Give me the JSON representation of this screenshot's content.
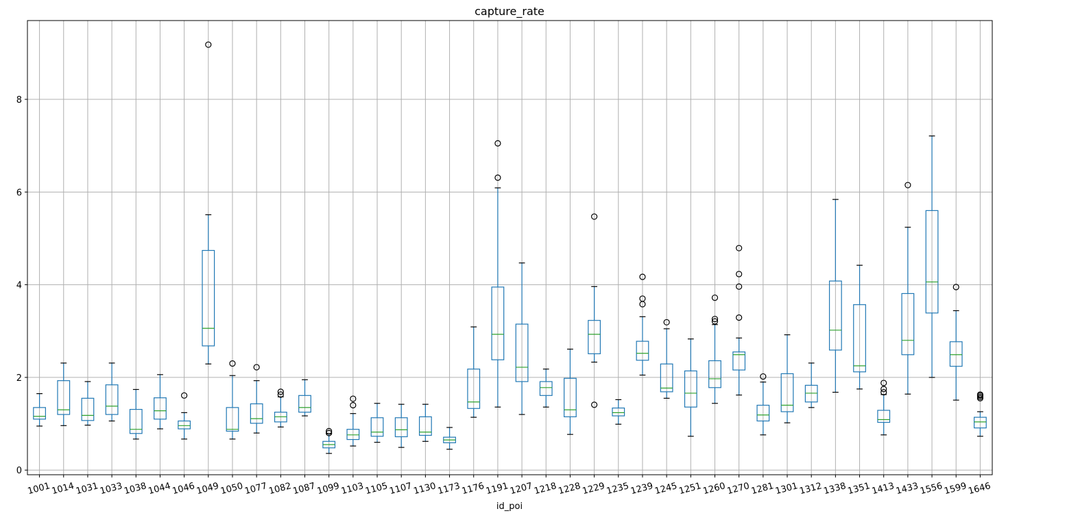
{
  "chart_data": {
    "type": "box",
    "title": "capture_rate",
    "xlabel": "id_poi",
    "ylabel": "",
    "ylim": [
      -0.1,
      9.7
    ],
    "yticks": [
      0,
      2,
      4,
      6,
      8
    ],
    "grid": true,
    "legend": "none",
    "colors": {
      "box": "#1f77b4",
      "median": "#2ca02c",
      "whisker": "#1f77b4",
      "cap": "#000000",
      "flier": "#000000",
      "grid": "#b0b0b0"
    },
    "categories": [
      "1001",
      "1014",
      "1031",
      "1033",
      "1038",
      "1044",
      "1046",
      "1049",
      "1050",
      "1077",
      "1082",
      "1087",
      "1099",
      "1103",
      "1105",
      "1107",
      "1130",
      "1173",
      "1176",
      "1191",
      "1207",
      "1218",
      "1228",
      "1229",
      "1235",
      "1239",
      "1245",
      "1251",
      "1260",
      "1270",
      "1281",
      "1301",
      "1312",
      "1338",
      "1351",
      "1413",
      "1433",
      "1556",
      "1599",
      "1646"
    ],
    "boxes": [
      {
        "id": "1001",
        "low": 0.95,
        "q1": 1.1,
        "median": 1.16,
        "q3": 1.35,
        "high": 1.65,
        "fliers": []
      },
      {
        "id": "1014",
        "low": 0.96,
        "q1": 1.2,
        "median": 1.3,
        "q3": 1.93,
        "high": 2.31,
        "fliers": []
      },
      {
        "id": "1031",
        "low": 0.97,
        "q1": 1.07,
        "median": 1.18,
        "q3": 1.55,
        "high": 1.91,
        "fliers": []
      },
      {
        "id": "1033",
        "low": 1.06,
        "q1": 1.2,
        "median": 1.38,
        "q3": 1.84,
        "high": 2.31,
        "fliers": []
      },
      {
        "id": "1038",
        "low": 0.67,
        "q1": 0.79,
        "median": 0.88,
        "q3": 1.31,
        "high": 1.74,
        "fliers": []
      },
      {
        "id": "1044",
        "low": 0.89,
        "q1": 1.1,
        "median": 1.28,
        "q3": 1.56,
        "high": 2.06,
        "fliers": []
      },
      {
        "id": "1046",
        "low": 0.67,
        "q1": 0.89,
        "median": 0.96,
        "q3": 1.06,
        "high": 1.24,
        "fliers": [
          1.61
        ]
      },
      {
        "id": "1049",
        "low": 2.29,
        "q1": 2.68,
        "median": 3.06,
        "q3": 4.74,
        "high": 5.51,
        "fliers": [
          9.18
        ]
      },
      {
        "id": "1050",
        "low": 0.67,
        "q1": 0.84,
        "median": 0.88,
        "q3": 1.35,
        "high": 2.04,
        "fliers": [
          2.3
        ]
      },
      {
        "id": "1077",
        "low": 0.8,
        "q1": 1.01,
        "median": 1.11,
        "q3": 1.43,
        "high": 1.93,
        "fliers": [
          2.22
        ]
      },
      {
        "id": "1082",
        "low": 0.93,
        "q1": 1.04,
        "median": 1.15,
        "q3": 1.25,
        "high": 1.58,
        "fliers": [
          1.63,
          1.69
        ]
      },
      {
        "id": "1087",
        "low": 1.17,
        "q1": 1.25,
        "median": 1.35,
        "q3": 1.61,
        "high": 1.95,
        "fliers": []
      },
      {
        "id": "1099",
        "low": 0.36,
        "q1": 0.48,
        "median": 0.55,
        "q3": 0.62,
        "high": 0.78,
        "fliers": [
          0.8,
          0.84
        ]
      },
      {
        "id": "1103",
        "low": 0.52,
        "q1": 0.66,
        "median": 0.76,
        "q3": 0.88,
        "high": 1.22,
        "fliers": [
          1.4,
          1.54
        ]
      },
      {
        "id": "1105",
        "low": 0.6,
        "q1": 0.73,
        "median": 0.82,
        "q3": 1.13,
        "high": 1.44,
        "fliers": []
      },
      {
        "id": "1107",
        "low": 0.49,
        "q1": 0.72,
        "median": 0.87,
        "q3": 1.13,
        "high": 1.42,
        "fliers": []
      },
      {
        "id": "1130",
        "low": 0.62,
        "q1": 0.75,
        "median": 0.82,
        "q3": 1.15,
        "high": 1.42,
        "fliers": []
      },
      {
        "id": "1173",
        "low": 0.45,
        "q1": 0.59,
        "median": 0.65,
        "q3": 0.71,
        "high": 0.92,
        "fliers": []
      },
      {
        "id": "1176",
        "low": 1.14,
        "q1": 1.33,
        "median": 1.47,
        "q3": 2.18,
        "high": 3.09,
        "fliers": []
      },
      {
        "id": "1191",
        "low": 1.36,
        "q1": 2.38,
        "median": 2.93,
        "q3": 3.95,
        "high": 6.09,
        "fliers": [
          6.31,
          7.05
        ]
      },
      {
        "id": "1207",
        "low": 1.2,
        "q1": 1.91,
        "median": 2.22,
        "q3": 3.15,
        "high": 4.47,
        "fliers": []
      },
      {
        "id": "1218",
        "low": 1.36,
        "q1": 1.61,
        "median": 1.78,
        "q3": 1.91,
        "high": 2.18,
        "fliers": []
      },
      {
        "id": "1228",
        "low": 0.77,
        "q1": 1.15,
        "median": 1.3,
        "q3": 1.98,
        "high": 2.61,
        "fliers": []
      },
      {
        "id": "1229",
        "low": 2.33,
        "q1": 2.51,
        "median": 2.93,
        "q3": 3.23,
        "high": 3.96,
        "fliers": [
          1.41,
          5.47
        ]
      },
      {
        "id": "1235",
        "low": 0.99,
        "q1": 1.17,
        "median": 1.24,
        "q3": 1.34,
        "high": 1.52,
        "fliers": []
      },
      {
        "id": "1239",
        "low": 2.05,
        "q1": 2.37,
        "median": 2.52,
        "q3": 2.78,
        "high": 3.31,
        "fliers": [
          3.58,
          3.7,
          4.17
        ]
      },
      {
        "id": "1245",
        "low": 1.55,
        "q1": 1.69,
        "median": 1.77,
        "q3": 2.29,
        "high": 3.05,
        "fliers": [
          3.19
        ]
      },
      {
        "id": "1251",
        "low": 0.73,
        "q1": 1.36,
        "median": 1.66,
        "q3": 2.14,
        "high": 2.83,
        "fliers": []
      },
      {
        "id": "1260",
        "low": 1.44,
        "q1": 1.78,
        "median": 1.97,
        "q3": 2.36,
        "high": 3.14,
        "fliers": [
          3.21,
          3.26,
          3.72
        ]
      },
      {
        "id": "1270",
        "low": 1.62,
        "q1": 2.16,
        "median": 2.49,
        "q3": 2.55,
        "high": 2.85,
        "fliers": [
          3.29,
          3.96,
          4.23,
          4.79
        ]
      },
      {
        "id": "1281",
        "low": 0.76,
        "q1": 1.06,
        "median": 1.19,
        "q3": 1.4,
        "high": 1.9,
        "fliers": [
          2.02
        ]
      },
      {
        "id": "1301",
        "low": 1.02,
        "q1": 1.26,
        "median": 1.4,
        "q3": 2.08,
        "high": 2.92,
        "fliers": []
      },
      {
        "id": "1312",
        "low": 1.35,
        "q1": 1.47,
        "median": 1.66,
        "q3": 1.83,
        "high": 2.31,
        "fliers": []
      },
      {
        "id": "1338",
        "low": 1.68,
        "q1": 2.59,
        "median": 3.02,
        "q3": 4.08,
        "high": 5.84,
        "fliers": []
      },
      {
        "id": "1351",
        "low": 1.75,
        "q1": 2.12,
        "median": 2.25,
        "q3": 3.57,
        "high": 4.42,
        "fliers": []
      },
      {
        "id": "1413",
        "low": 0.76,
        "q1": 1.03,
        "median": 1.09,
        "q3": 1.29,
        "high": 1.63,
        "fliers": [
          1.68,
          1.75,
          1.88
        ]
      },
      {
        "id": "1433",
        "low": 1.64,
        "q1": 2.49,
        "median": 2.8,
        "q3": 3.81,
        "high": 5.24,
        "fliers": [
          6.15
        ]
      },
      {
        "id": "1556",
        "low": 2.0,
        "q1": 3.39,
        "median": 4.06,
        "q3": 5.6,
        "high": 7.21,
        "fliers": []
      },
      {
        "id": "1599",
        "low": 1.51,
        "q1": 2.24,
        "median": 2.49,
        "q3": 2.77,
        "high": 3.44,
        "fliers": [
          3.95
        ]
      },
      {
        "id": "1646",
        "low": 0.73,
        "q1": 0.91,
        "median": 1.04,
        "q3": 1.14,
        "high": 1.26,
        "fliers": [
          1.55,
          1.58,
          1.61,
          1.63
        ]
      }
    ]
  }
}
